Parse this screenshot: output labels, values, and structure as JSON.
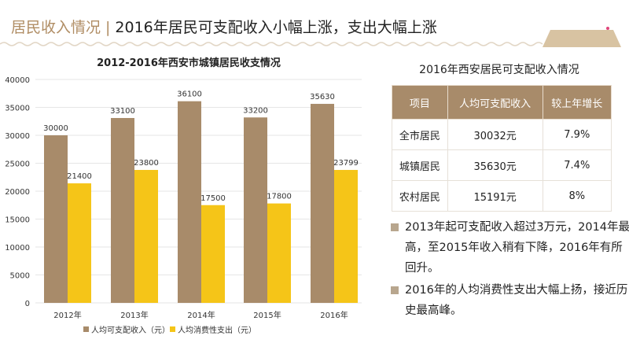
{
  "header": {
    "section": "居民收入情况",
    "separator": "|",
    "title": "2016年居民可支配收入小幅上涨，支出大幅上涨"
  },
  "colors": {
    "income": "#a88b6a",
    "spending": "#f5c518",
    "accent": "#b08d64"
  },
  "chart_data": {
    "type": "bar",
    "title": "2012-2016年西安市城镇居民收支情况",
    "categories": [
      "2012年",
      "2013年",
      "2014年",
      "2015年",
      "2016年"
    ],
    "series": [
      {
        "name": "人均可支配收入（元）",
        "values": [
          30000,
          33100,
          36100,
          33200,
          35630
        ]
      },
      {
        "name": "人均消费性支出（元）",
        "values": [
          21400,
          23800,
          17500,
          17800,
          23799
        ]
      }
    ],
    "ylim": [
      0,
      40000
    ],
    "yticks": [
      0,
      5000,
      10000,
      15000,
      20000,
      25000,
      30000,
      35000,
      40000
    ],
    "grid": true,
    "legend": "bottom"
  },
  "table": {
    "title": "2016年西安居民可支配收入情况",
    "headers": [
      "项目",
      "人均可支配收入",
      "较上年增长"
    ],
    "rows": [
      [
        "全市居民",
        "30032元",
        "7.9%"
      ],
      [
        "城镇居民",
        "35630元",
        "7.4%"
      ],
      [
        "农村居民",
        "15191元",
        "8%"
      ]
    ]
  },
  "bullets": [
    "2013年起可支配收入超过3万元，2014年最高，至2015年收入稍有下降，2016年有所回升。",
    "2016年的人均消费性支出大幅上扬，接近历史最高峰。"
  ]
}
